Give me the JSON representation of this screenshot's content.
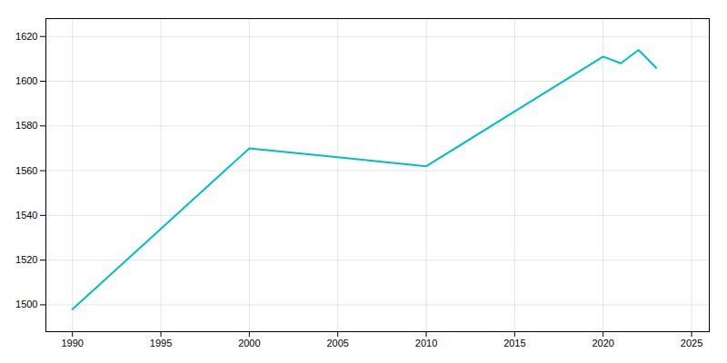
{
  "chart_data": {
    "type": "line",
    "x": [
      1990,
      2000,
      2005,
      2010,
      2020,
      2021,
      2022,
      2023
    ],
    "values": [
      1498,
      1570,
      1566,
      1562,
      1611,
      1608,
      1614,
      1606
    ],
    "color": "#00BFBF",
    "xlim": [
      1988.5,
      2026
    ],
    "ylim": [
      1488,
      1628
    ],
    "xticks": [
      1990,
      1995,
      2000,
      2005,
      2010,
      2015,
      2020,
      2025
    ],
    "yticks": [
      1500,
      1520,
      1540,
      1560,
      1580,
      1600,
      1620
    ],
    "grid": true
  }
}
